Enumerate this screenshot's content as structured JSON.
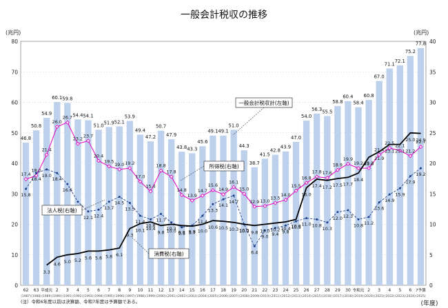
{
  "chart_data": {
    "type": "bar+line",
    "title": "一般会計税収の推移",
    "left_axis_label": "(兆円)",
    "right_axis_label": "(兆円)",
    "left_ylim": [
      0,
      80
    ],
    "right_ylim": [
      0,
      40
    ],
    "left_ticks": [
      "0",
      "10",
      "20",
      "30",
      "40",
      "50",
      "60",
      "70",
      "80"
    ],
    "right_ticks": [
      "0",
      "5",
      "10",
      "15",
      "20",
      "25",
      "30",
      "35",
      "40"
    ],
    "xlabel": "(年度)",
    "categories": [
      "62",
      "63",
      "平成元",
      "2",
      "3",
      "4",
      "5",
      "6",
      "7",
      "8",
      "9",
      "10",
      "11",
      "12",
      "13",
      "14",
      "15",
      "16",
      "17",
      "18",
      "19",
      "20",
      "21",
      "22",
      "23",
      "24",
      "25",
      "26",
      "27",
      "28",
      "29",
      "30",
      "令和元",
      "2",
      "3",
      "4",
      "5",
      "6",
      "7予算"
    ],
    "years": [
      "(1987)",
      "(1988)",
      "(1989)",
      "(1990)",
      "(1991)",
      "(1992)",
      "(1993)",
      "(1994)",
      "(1995)",
      "(1996)",
      "(1997)",
      "(1998)",
      "(1999)",
      "(2000)",
      "(2001)",
      "(2002)",
      "(2003)",
      "(2004)",
      "(2005)",
      "(2006)",
      "(2007)",
      "(2008)",
      "(2009)",
      "(2010)",
      "(2011)",
      "(2012)",
      "(2013)",
      "(2014)",
      "(2015)",
      "(2016)",
      "(2017)",
      "(2018)",
      "(2019)",
      "(2020)",
      "(2021)",
      "(2022)",
      "(2023)",
      "(2024)",
      "(2025)"
    ],
    "series": [
      {
        "name": "一般会計税収計",
        "axis_label": "一般会計税収計(左軸)",
        "type": "bar",
        "axis": "left",
        "values": [
          46.8,
          50.8,
          54.9,
          60.1,
          59.8,
          54.4,
          54.1,
          51.0,
          51.9,
          52.1,
          53.9,
          49.4,
          47.2,
          50.7,
          47.9,
          43.8,
          43.3,
          45.6,
          49.1,
          49.1,
          51.0,
          44.3,
          38.7,
          41.5,
          42.8,
          43.9,
          47.0,
          54.0,
          56.3,
          55.5,
          58.8,
          60.4,
          58.4,
          60.8,
          67.0,
          71.1,
          72.1,
          75.2,
          77.8
        ]
      },
      {
        "name": "所得税",
        "axis_label": "所得税(右軸)",
        "type": "line",
        "axis": "right",
        "values": [
          17.4,
          18.0,
          21.4,
          26.0,
          26.7,
          23.2,
          23.7,
          20.4,
          19.5,
          19.0,
          19.2,
          17.0,
          15.4,
          18.8,
          17.8,
          14.8,
          13.9,
          14.7,
          15.6,
          14.9,
          16.1,
          15.0,
          12.9,
          13.0,
          13.5,
          14.0,
          15.5,
          16.8,
          17.8,
          17.6,
          18.9,
          19.9,
          19.2,
          19.2,
          21.4,
          22.5,
          22.1,
          21.2,
          22.7
        ]
      },
      {
        "name": "法人税",
        "axis_label": "法人税(右軸)",
        "type": "line",
        "axis": "right",
        "values": [
          15.8,
          18.4,
          19.0,
          18.4,
          16.6,
          13.7,
          12.1,
          12.4,
          13.7,
          14.5,
          13.5,
          11.4,
          10.8,
          11.7,
          10.3,
          9.5,
          9.8,
          11.4,
          13.3,
          14.1,
          14.7,
          10.0,
          6.4,
          9.0,
          9.4,
          9.8,
          10.5,
          11.0,
          10.8,
          10.3,
          12.0,
          12.3,
          10.8,
          11.2,
          13.6,
          14.9,
          15.9,
          17.9,
          19.2
        ]
      },
      {
        "name": "消費税",
        "axis_label": "消費税(右軸)",
        "type": "line",
        "axis": "right",
        "values": [
          null,
          null,
          3.3,
          4.6,
          5.0,
          5.2,
          5.6,
          5.6,
          5.8,
          6.1,
          9.3,
          10.1,
          10.4,
          9.8,
          10.0,
          9.8,
          9.7,
          10.0,
          10.6,
          10.5,
          10.3,
          10.0,
          9.8,
          10.0,
          10.2,
          10.4,
          10.8,
          16.0,
          17.4,
          17.2,
          17.5,
          17.7,
          18.4,
          21.0,
          21.9,
          23.1,
          23.1,
          25.0,
          24.9
        ]
      }
    ],
    "footnote": "(注）令和6年度以前は決算額、令和7年度は予算額である。"
  }
}
